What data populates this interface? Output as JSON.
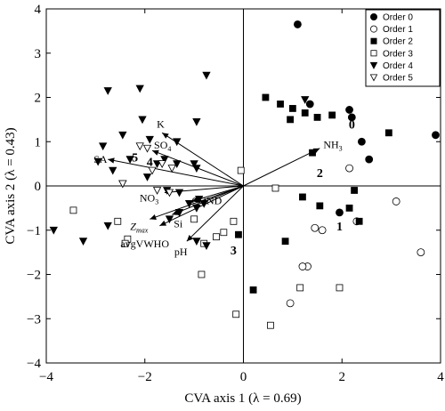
{
  "chart_data": {
    "type": "scatter",
    "title": "",
    "xlabel": "CVA axis 1 (λ = 0.69)",
    "ylabel": "CVA axis 2 (λ = 0.43)",
    "xlim": [
      -4,
      4
    ],
    "ylim": [
      -4,
      4
    ],
    "x_ticks": [
      "−4",
      "−2",
      "0",
      "2",
      "4"
    ],
    "y_ticks": [
      "−4",
      "−3",
      "−2",
      "−1",
      "0",
      "1",
      "2",
      "3",
      "4"
    ],
    "x_tick_values": [
      -4,
      -2,
      0,
      2,
      4
    ],
    "y_tick_values": [
      -4,
      -3,
      -2,
      -1,
      0,
      1,
      2,
      3,
      4
    ],
    "zero_lines": true,
    "legend_position": "top-right",
    "series": [
      {
        "name": "Order 0",
        "marker": "filled-circle",
        "points": [
          [
            1.1,
            3.65
          ],
          [
            1.35,
            1.85
          ],
          [
            2.15,
            1.72
          ],
          [
            2.2,
            1.55
          ],
          [
            2.4,
            1.0
          ],
          [
            2.55,
            0.6
          ],
          [
            3.9,
            1.15
          ],
          [
            1.95,
            -0.6
          ]
        ]
      },
      {
        "name": "Order 1",
        "marker": "open-circle",
        "points": [
          [
            2.15,
            0.4
          ],
          [
            1.45,
            -0.95
          ],
          [
            1.6,
            -1.0
          ],
          [
            2.3,
            -0.8
          ],
          [
            3.1,
            -0.35
          ],
          [
            3.6,
            -1.5
          ],
          [
            1.3,
            -1.82
          ],
          [
            1.2,
            -1.82
          ],
          [
            0.95,
            -2.65
          ]
        ]
      },
      {
        "name": "Order 2",
        "marker": "filled-square",
        "points": [
          [
            0.45,
            2.0
          ],
          [
            0.75,
            1.85
          ],
          [
            1.0,
            1.75
          ],
          [
            1.25,
            1.65
          ],
          [
            1.5,
            1.55
          ],
          [
            1.8,
            1.6
          ],
          [
            0.95,
            1.5
          ],
          [
            2.95,
            1.2
          ],
          [
            1.4,
            0.75
          ],
          [
            1.2,
            -0.25
          ],
          [
            1.55,
            -0.45
          ],
          [
            2.25,
            -0.1
          ],
          [
            2.15,
            -0.5
          ],
          [
            2.35,
            -0.8
          ],
          [
            0.85,
            -1.25
          ],
          [
            -0.1,
            -1.1
          ],
          [
            0.2,
            -2.35
          ]
        ]
      },
      {
        "name": "Order 3",
        "marker": "open-square",
        "points": [
          [
            -0.05,
            0.35
          ],
          [
            0.65,
            -0.05
          ],
          [
            -0.2,
            -0.8
          ],
          [
            -0.4,
            -1.05
          ],
          [
            -0.55,
            -1.15
          ],
          [
            -0.8,
            -1.3
          ],
          [
            -1.0,
            -0.75
          ],
          [
            -2.35,
            -1.2
          ],
          [
            -2.55,
            -0.8
          ],
          [
            -3.45,
            -0.55
          ],
          [
            -2.4,
            -1.3
          ],
          [
            -0.85,
            -2.0
          ],
          [
            -0.15,
            -2.9
          ],
          [
            0.55,
            -3.15
          ],
          [
            1.15,
            -2.3
          ],
          [
            1.95,
            -2.3
          ]
        ]
      },
      {
        "name": "Order 4",
        "marker": "filled-triangle-down",
        "points": [
          [
            -0.75,
            2.5
          ],
          [
            -2.1,
            2.2
          ],
          [
            -2.75,
            2.15
          ],
          [
            -2.05,
            1.5
          ],
          [
            -1.9,
            1.05
          ],
          [
            -2.45,
            1.15
          ],
          [
            -2.85,
            0.9
          ],
          [
            -1.35,
            1.0
          ],
          [
            -1.6,
            0.6
          ],
          [
            -1.35,
            0.5
          ],
          [
            -0.95,
            1.45
          ],
          [
            1.25,
            1.95
          ],
          [
            -1.0,
            0.5
          ],
          [
            -0.95,
            0.4
          ],
          [
            -1.75,
            0.5
          ],
          [
            -2.3,
            0.6
          ],
          [
            -2.95,
            0.55
          ],
          [
            -2.65,
            0.35
          ],
          [
            -2.45,
            0.05
          ],
          [
            -1.95,
            0.2
          ],
          [
            -1.55,
            -0.1
          ],
          [
            -1.3,
            -0.15
          ],
          [
            -0.9,
            -0.3
          ],
          [
            -0.8,
            -0.4
          ],
          [
            -0.95,
            -0.5
          ],
          [
            -1.1,
            -0.4
          ],
          [
            -1.3,
            -0.6
          ],
          [
            -1.5,
            -0.75
          ],
          [
            -0.95,
            -1.25
          ],
          [
            -0.75,
            -1.35
          ],
          [
            -2.75,
            -0.9
          ],
          [
            -3.85,
            -1.0
          ],
          [
            -3.25,
            -1.25
          ]
        ]
      },
      {
        "name": "Order 5",
        "marker": "open-triangle-down",
        "points": [
          [
            -2.1,
            0.9
          ],
          [
            -1.95,
            0.85
          ],
          [
            -1.65,
            0.5
          ],
          [
            -1.45,
            0.4
          ],
          [
            -1.85,
            0.35
          ],
          [
            -2.45,
            0.05
          ],
          [
            -1.75,
            -0.1
          ],
          [
            -1.5,
            -0.15
          ]
        ]
      }
    ],
    "vectors": [
      {
        "label": "K",
        "end": [
          -1.65,
          1.2
        ]
      },
      {
        "label": "NH3",
        "end": [
          1.55,
          0.85
        ]
      },
      {
        "label": "SO4",
        "end": [
          -1.85,
          0.8
        ]
      },
      {
        "label": "SA",
        "end": [
          -2.75,
          0.6
        ]
      },
      {
        "label": "NO3",
        "end": [
          -1.6,
          -0.15
        ]
      },
      {
        "label": "COND",
        "end": [
          -1.05,
          -0.35
        ]
      },
      {
        "label": "Zmax",
        "end": [
          -1.9,
          -0.75
        ]
      },
      {
        "label": "Si",
        "end": [
          -1.45,
          -0.65
        ]
      },
      {
        "label": "avgVWHO",
        "end": [
          -1.7,
          -0.9
        ]
      },
      {
        "label": "pH",
        "end": [
          -1.15,
          -1.25
        ]
      }
    ],
    "group_labels": [
      {
        "text": "0",
        "pos": [
          2.2,
          1.3
        ]
      },
      {
        "text": "1",
        "pos": [
          1.95,
          -1.0
        ]
      },
      {
        "text": "2",
        "pos": [
          1.55,
          0.2
        ]
      },
      {
        "text": "3",
        "pos": [
          -0.2,
          -1.55
        ]
      },
      {
        "text": "4",
        "pos": [
          -1.9,
          0.45
        ]
      },
      {
        "text": "5",
        "pos": [
          -2.2,
          0.55
        ]
      }
    ]
  }
}
